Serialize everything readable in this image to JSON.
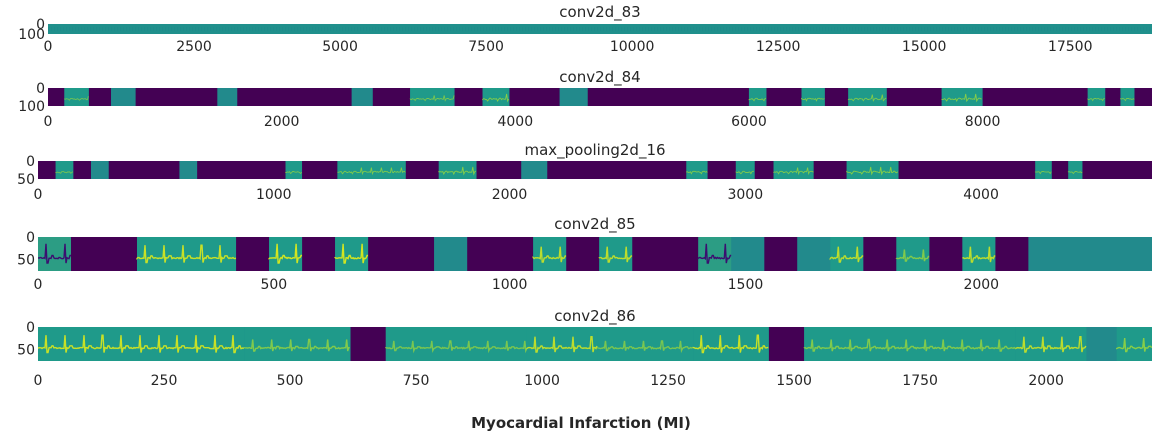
{
  "chart_data": {
    "type": "heatmap",
    "xlabel": "Myocardial Infarction (MI)",
    "colormap": "viridis",
    "colors": {
      "background": "#20908c",
      "dark": "#440154",
      "bright": "#d3e620",
      "mid": "#2a788e"
    },
    "panels": [
      {
        "title": "conv2d_83",
        "xlim": [
          0,
          18900
        ],
        "ylim": [
          0,
          100
        ],
        "xticks": [
          "0",
          "2500",
          "5000",
          "7500",
          "10000",
          "12500",
          "15000",
          "17500"
        ],
        "xtick_values": [
          0,
          2500,
          5000,
          7500,
          10000,
          12500,
          15000,
          17500
        ],
        "yticks": [
          "0",
          "100"
        ],
        "ytick_values": [
          0,
          100
        ],
        "segments": []
      },
      {
        "title": "conv2d_84",
        "xlim": [
          0,
          9450
        ],
        "ylim": [
          0,
          100
        ],
        "xticks": [
          "0",
          "2000",
          "4000",
          "6000",
          "8000"
        ],
        "xtick_values": [
          0,
          2000,
          4000,
          6000,
          8000
        ],
        "yticks": [
          "0",
          "100"
        ],
        "ytick_values": [
          0,
          100
        ],
        "segments": [
          {
            "start": 0,
            "end": 140,
            "kind": "dark"
          },
          {
            "start": 140,
            "end": 350,
            "kind": "wave",
            "intensity": 0.4
          },
          {
            "start": 350,
            "end": 540,
            "kind": "dark"
          },
          {
            "start": 540,
            "end": 750,
            "kind": "teal"
          },
          {
            "start": 750,
            "end": 1450,
            "kind": "dark"
          },
          {
            "start": 1450,
            "end": 1620,
            "kind": "teal"
          },
          {
            "start": 1620,
            "end": 2600,
            "kind": "dark"
          },
          {
            "start": 2600,
            "end": 2780,
            "kind": "teal"
          },
          {
            "start": 2780,
            "end": 3100,
            "kind": "dark"
          },
          {
            "start": 3100,
            "end": 3480,
            "kind": "wave",
            "intensity": 0.5
          },
          {
            "start": 3480,
            "end": 3720,
            "kind": "dark"
          },
          {
            "start": 3720,
            "end": 3950,
            "kind": "wave",
            "intensity": 0.7
          },
          {
            "start": 3950,
            "end": 4380,
            "kind": "dark"
          },
          {
            "start": 4380,
            "end": 4620,
            "kind": "teal"
          },
          {
            "start": 4620,
            "end": 6000,
            "kind": "dark"
          },
          {
            "start": 6000,
            "end": 6150,
            "kind": "wave",
            "intensity": 0.6
          },
          {
            "start": 6150,
            "end": 6450,
            "kind": "dark"
          },
          {
            "start": 6450,
            "end": 6650,
            "kind": "wave",
            "intensity": 0.6
          },
          {
            "start": 6650,
            "end": 6850,
            "kind": "dark"
          },
          {
            "start": 6850,
            "end": 7180,
            "kind": "wave",
            "intensity": 0.6
          },
          {
            "start": 7180,
            "end": 7650,
            "kind": "dark"
          },
          {
            "start": 7650,
            "end": 8000,
            "kind": "wave",
            "intensity": 0.7
          },
          {
            "start": 8000,
            "end": 8900,
            "kind": "dark"
          },
          {
            "start": 8900,
            "end": 9050,
            "kind": "wave",
            "intensity": 0.5
          },
          {
            "start": 9050,
            "end": 9180,
            "kind": "dark"
          },
          {
            "start": 9180,
            "end": 9300,
            "kind": "wave",
            "intensity": 0.5
          },
          {
            "start": 9300,
            "end": 9450,
            "kind": "dark"
          }
        ]
      },
      {
        "title": "max_pooling2d_16",
        "xlim": [
          0,
          4725
        ],
        "ylim": [
          0,
          50
        ],
        "xticks": [
          "0",
          "1000",
          "2000",
          "3000",
          "4000"
        ],
        "xtick_values": [
          0,
          1000,
          2000,
          3000,
          4000
        ],
        "yticks": [
          "0",
          "50"
        ],
        "ytick_values": [
          0,
          50
        ],
        "segments": [
          {
            "start": 0,
            "end": 75,
            "kind": "dark"
          },
          {
            "start": 75,
            "end": 150,
            "kind": "wave",
            "intensity": 0.4
          },
          {
            "start": 150,
            "end": 225,
            "kind": "dark"
          },
          {
            "start": 225,
            "end": 300,
            "kind": "teal"
          },
          {
            "start": 300,
            "end": 600,
            "kind": "dark"
          },
          {
            "start": 600,
            "end": 675,
            "kind": "teal"
          },
          {
            "start": 675,
            "end": 1050,
            "kind": "dark"
          },
          {
            "start": 1050,
            "end": 1120,
            "kind": "wave",
            "intensity": 0.5
          },
          {
            "start": 1120,
            "end": 1270,
            "kind": "dark"
          },
          {
            "start": 1270,
            "end": 1560,
            "kind": "wave",
            "intensity": 0.6
          },
          {
            "start": 1560,
            "end": 1700,
            "kind": "dark"
          },
          {
            "start": 1700,
            "end": 1860,
            "kind": "wave",
            "intensity": 0.7
          },
          {
            "start": 1860,
            "end": 2050,
            "kind": "dark"
          },
          {
            "start": 2050,
            "end": 2160,
            "kind": "teal"
          },
          {
            "start": 2160,
            "end": 2750,
            "kind": "dark"
          },
          {
            "start": 2750,
            "end": 2840,
            "kind": "wave",
            "intensity": 0.6
          },
          {
            "start": 2840,
            "end": 2960,
            "kind": "dark"
          },
          {
            "start": 2960,
            "end": 3040,
            "kind": "wave",
            "intensity": 0.6
          },
          {
            "start": 3040,
            "end": 3120,
            "kind": "dark"
          },
          {
            "start": 3120,
            "end": 3290,
            "kind": "wave",
            "intensity": 0.6
          },
          {
            "start": 3290,
            "end": 3430,
            "kind": "dark"
          },
          {
            "start": 3430,
            "end": 3650,
            "kind": "wave",
            "intensity": 0.7
          },
          {
            "start": 3650,
            "end": 4230,
            "kind": "dark"
          },
          {
            "start": 4230,
            "end": 4300,
            "kind": "wave",
            "intensity": 0.5
          },
          {
            "start": 4300,
            "end": 4370,
            "kind": "dark"
          },
          {
            "start": 4370,
            "end": 4430,
            "kind": "wave",
            "intensity": 0.5
          },
          {
            "start": 4430,
            "end": 4725,
            "kind": "dark"
          }
        ]
      },
      {
        "title": "conv2d_85",
        "xlim": [
          0,
          2362
        ],
        "ylim": [
          0,
          75
        ],
        "xticks": [
          "0",
          "500",
          "1000",
          "1500",
          "2000"
        ],
        "xtick_values": [
          0,
          500,
          1000,
          1500,
          2000
        ],
        "yticks": [
          "0",
          "50"
        ],
        "ytick_values": [
          0,
          50
        ],
        "segments": [
          {
            "start": 0,
            "end": 70,
            "kind": "wave",
            "intensity": 1.0,
            "variant": "darktrace"
          },
          {
            "start": 70,
            "end": 210,
            "kind": "dark"
          },
          {
            "start": 210,
            "end": 420,
            "kind": "wave",
            "intensity": 0.9
          },
          {
            "start": 420,
            "end": 490,
            "kind": "dark"
          },
          {
            "start": 490,
            "end": 560,
            "kind": "wave",
            "intensity": 1.0
          },
          {
            "start": 560,
            "end": 630,
            "kind": "dark"
          },
          {
            "start": 630,
            "end": 700,
            "kind": "wave",
            "intensity": 1.0
          },
          {
            "start": 700,
            "end": 840,
            "kind": "dark"
          },
          {
            "start": 840,
            "end": 910,
            "kind": "teal"
          },
          {
            "start": 910,
            "end": 1050,
            "kind": "dark"
          },
          {
            "start": 1050,
            "end": 1120,
            "kind": "wave",
            "intensity": 0.8
          },
          {
            "start": 1120,
            "end": 1190,
            "kind": "dark"
          },
          {
            "start": 1190,
            "end": 1260,
            "kind": "wave",
            "intensity": 0.8
          },
          {
            "start": 1260,
            "end": 1400,
            "kind": "dark"
          },
          {
            "start": 1400,
            "end": 1470,
            "kind": "wave",
            "intensity": 1.0,
            "variant": "darktrace"
          },
          {
            "start": 1470,
            "end": 1540,
            "kind": "teal"
          },
          {
            "start": 1540,
            "end": 1610,
            "kind": "dark"
          },
          {
            "start": 1610,
            "end": 1680,
            "kind": "teal"
          },
          {
            "start": 1680,
            "end": 1750,
            "kind": "wave",
            "intensity": 0.8
          },
          {
            "start": 1750,
            "end": 1820,
            "kind": "dark"
          },
          {
            "start": 1820,
            "end": 1890,
            "kind": "wave",
            "intensity": 0.6
          },
          {
            "start": 1890,
            "end": 1960,
            "kind": "dark"
          },
          {
            "start": 1960,
            "end": 2030,
            "kind": "wave",
            "intensity": 0.8
          },
          {
            "start": 2030,
            "end": 2100,
            "kind": "dark"
          },
          {
            "start": 2100,
            "end": 2362,
            "kind": "teal"
          }
        ]
      },
      {
        "title": "conv2d_86",
        "xlim": [
          0,
          2210
        ],
        "ylim": [
          0,
          75
        ],
        "xticks": [
          "0",
          "250",
          "500",
          "750",
          "1000",
          "1250",
          "1500",
          "1750",
          "2000"
        ],
        "xtick_values": [
          0,
          250,
          500,
          750,
          1000,
          1250,
          1500,
          1750,
          2000
        ],
        "yticks": [
          "0",
          "50"
        ],
        "ytick_values": [
          0,
          50
        ],
        "segments": [
          {
            "start": 0,
            "end": 410,
            "kind": "wave",
            "intensity": 0.9
          },
          {
            "start": 410,
            "end": 620,
            "kind": "wave",
            "intensity": 0.6
          },
          {
            "start": 620,
            "end": 690,
            "kind": "dark"
          },
          {
            "start": 690,
            "end": 970,
            "kind": "wave",
            "intensity": 0.5
          },
          {
            "start": 970,
            "end": 1110,
            "kind": "wave",
            "intensity": 0.8
          },
          {
            "start": 1110,
            "end": 1300,
            "kind": "wave",
            "intensity": 0.5
          },
          {
            "start": 1300,
            "end": 1450,
            "kind": "wave",
            "intensity": 0.9
          },
          {
            "start": 1450,
            "end": 1520,
            "kind": "dark"
          },
          {
            "start": 1520,
            "end": 1940,
            "kind": "wave",
            "intensity": 0.6
          },
          {
            "start": 1940,
            "end": 2080,
            "kind": "wave",
            "intensity": 0.8
          },
          {
            "start": 2080,
            "end": 2140,
            "kind": "teal"
          },
          {
            "start": 2140,
            "end": 2210,
            "kind": "wave",
            "intensity": 0.7
          }
        ]
      }
    ]
  }
}
